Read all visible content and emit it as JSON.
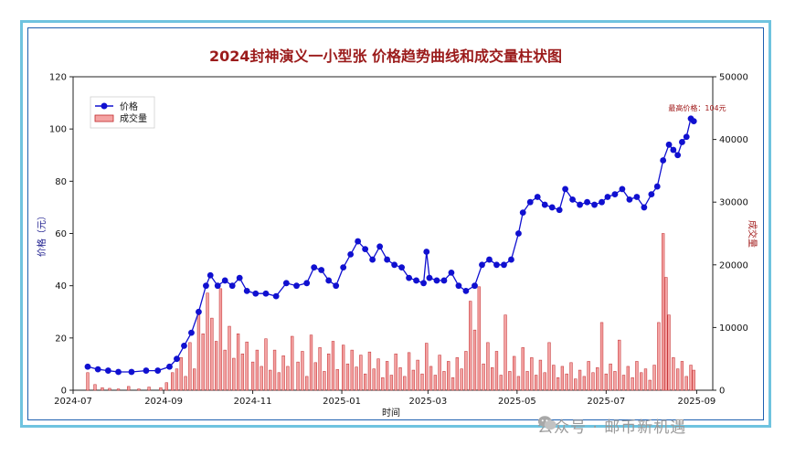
{
  "chart_data": {
    "type": "line+bar",
    "title": "2024封神演义一小型张 价格趋势曲线和成交量柱状图",
    "xlabel": "时间",
    "ylabel_left": "价格（元）",
    "ylabel_right": "成交量",
    "x_ticks": [
      "2024-07",
      "2024-09",
      "2024-11",
      "2025-01",
      "2025-03",
      "2025-05",
      "2025-07",
      "2025-09"
    ],
    "x_range": [
      "2024-07-01",
      "2025-09-12"
    ],
    "y_left_ticks": [
      0,
      20,
      40,
      60,
      80,
      100,
      120
    ],
    "y_left_range": [
      0,
      120
    ],
    "y_right_ticks": [
      0,
      10000,
      20000,
      30000,
      40000,
      50000
    ],
    "y_right_range": [
      0,
      50000
    ],
    "legend": {
      "position": "top-left",
      "items": [
        "价格",
        "成交量"
      ]
    },
    "annotation": "最高价格：104元",
    "colors": {
      "price": "#1010d0",
      "volume_fill": "#f4a3a3",
      "volume_edge": "#c0282a",
      "title": "#9b1b1b"
    },
    "series": [
      {
        "name": "价格",
        "kind": "line",
        "points": [
          [
            "2024-07-11",
            9
          ],
          [
            "2024-07-18",
            8
          ],
          [
            "2024-07-25",
            7.5
          ],
          [
            "2024-08-01",
            7
          ],
          [
            "2024-08-10",
            7
          ],
          [
            "2024-08-20",
            7.5
          ],
          [
            "2024-08-28",
            7.5
          ],
          [
            "2024-09-05",
            9
          ],
          [
            "2024-09-10",
            12
          ],
          [
            "2024-09-15",
            17
          ],
          [
            "2024-09-20",
            22
          ],
          [
            "2024-09-25",
            30
          ],
          [
            "2024-09-30",
            40
          ],
          [
            "2024-10-03",
            44
          ],
          [
            "2024-10-08",
            40
          ],
          [
            "2024-10-13",
            42
          ],
          [
            "2024-10-18",
            40
          ],
          [
            "2024-10-23",
            43
          ],
          [
            "2024-10-28",
            38
          ],
          [
            "2024-11-03",
            37
          ],
          [
            "2024-11-10",
            37
          ],
          [
            "2024-11-17",
            36
          ],
          [
            "2024-11-24",
            41
          ],
          [
            "2024-12-01",
            40
          ],
          [
            "2024-12-08",
            41
          ],
          [
            "2024-12-13",
            47
          ],
          [
            "2024-12-18",
            46
          ],
          [
            "2024-12-23",
            42
          ],
          [
            "2024-12-28",
            40
          ],
          [
            "2025-01-02",
            47
          ],
          [
            "2025-01-07",
            52
          ],
          [
            "2025-01-12",
            57
          ],
          [
            "2025-01-17",
            54
          ],
          [
            "2025-01-22",
            50
          ],
          [
            "2025-01-27",
            55
          ],
          [
            "2025-02-01",
            50
          ],
          [
            "2025-02-06",
            48
          ],
          [
            "2025-02-11",
            47
          ],
          [
            "2025-02-16",
            43
          ],
          [
            "2025-02-21",
            42
          ],
          [
            "2025-02-26",
            41
          ],
          [
            "2025-02-28",
            53
          ],
          [
            "2025-03-02",
            43
          ],
          [
            "2025-03-07",
            42
          ],
          [
            "2025-03-12",
            42
          ],
          [
            "2025-03-17",
            45
          ],
          [
            "2025-03-22",
            40
          ],
          [
            "2025-03-27",
            38
          ],
          [
            "2025-04-02",
            40
          ],
          [
            "2025-04-07",
            48
          ],
          [
            "2025-04-12",
            50
          ],
          [
            "2025-04-17",
            48
          ],
          [
            "2025-04-22",
            48
          ],
          [
            "2025-04-27",
            50
          ],
          [
            "2025-05-02",
            60
          ],
          [
            "2025-05-05",
            68
          ],
          [
            "2025-05-10",
            72
          ],
          [
            "2025-05-15",
            74
          ],
          [
            "2025-05-20",
            71
          ],
          [
            "2025-05-25",
            70
          ],
          [
            "2025-05-30",
            69
          ],
          [
            "2025-06-03",
            77
          ],
          [
            "2025-06-08",
            73
          ],
          [
            "2025-06-13",
            71
          ],
          [
            "2025-06-18",
            72
          ],
          [
            "2025-06-23",
            71
          ],
          [
            "2025-06-28",
            72
          ],
          [
            "2025-07-02",
            74
          ],
          [
            "2025-07-07",
            75
          ],
          [
            "2025-07-12",
            77
          ],
          [
            "2025-07-17",
            73
          ],
          [
            "2025-07-22",
            74
          ],
          [
            "2025-07-27",
            70
          ],
          [
            "2025-08-01",
            75
          ],
          [
            "2025-08-05",
            78
          ],
          [
            "2025-08-09",
            88
          ],
          [
            "2025-08-13",
            94
          ],
          [
            "2025-08-16",
            92
          ],
          [
            "2025-08-19",
            90
          ],
          [
            "2025-08-22",
            95
          ],
          [
            "2025-08-25",
            97
          ],
          [
            "2025-08-28",
            104
          ],
          [
            "2025-08-30",
            103
          ]
        ]
      },
      {
        "name": "成交量",
        "kind": "bar",
        "points": [
          [
            "2024-07-11",
            2800
          ],
          [
            "2024-07-16",
            900
          ],
          [
            "2024-07-21",
            400
          ],
          [
            "2024-07-26",
            300
          ],
          [
            "2024-08-01",
            200
          ],
          [
            "2024-08-08",
            600
          ],
          [
            "2024-08-15",
            200
          ],
          [
            "2024-08-22",
            500
          ],
          [
            "2024-08-30",
            400
          ],
          [
            "2024-09-03",
            1200
          ],
          [
            "2024-09-07",
            2800
          ],
          [
            "2024-09-10",
            3400
          ],
          [
            "2024-09-13",
            5200
          ],
          [
            "2024-09-16",
            2200
          ],
          [
            "2024-09-19",
            7600
          ],
          [
            "2024-09-22",
            3400
          ],
          [
            "2024-09-25",
            12000
          ],
          [
            "2024-09-28",
            9000
          ],
          [
            "2024-10-01",
            15500
          ],
          [
            "2024-10-04",
            11500
          ],
          [
            "2024-10-07",
            7800
          ],
          [
            "2024-10-10",
            16200
          ],
          [
            "2024-10-13",
            6400
          ],
          [
            "2024-10-16",
            10200
          ],
          [
            "2024-10-19",
            5100
          ],
          [
            "2024-10-22",
            9000
          ],
          [
            "2024-10-25",
            5800
          ],
          [
            "2024-10-28",
            7700
          ],
          [
            "2024-11-01",
            4500
          ],
          [
            "2024-11-04",
            6400
          ],
          [
            "2024-11-07",
            3800
          ],
          [
            "2024-11-10",
            8200
          ],
          [
            "2024-11-13",
            3200
          ],
          [
            "2024-11-16",
            6400
          ],
          [
            "2024-11-19",
            2800
          ],
          [
            "2024-11-22",
            5500
          ],
          [
            "2024-11-25",
            3800
          ],
          [
            "2024-11-28",
            8600
          ],
          [
            "2024-12-02",
            4500
          ],
          [
            "2024-12-05",
            6200
          ],
          [
            "2024-12-08",
            2200
          ],
          [
            "2024-12-11",
            8800
          ],
          [
            "2024-12-14",
            4400
          ],
          [
            "2024-12-17",
            6800
          ],
          [
            "2024-12-20",
            3000
          ],
          [
            "2024-12-23",
            5800
          ],
          [
            "2024-12-26",
            7800
          ],
          [
            "2024-12-29",
            3300
          ],
          [
            "2025-01-02",
            7200
          ],
          [
            "2025-01-05",
            4200
          ],
          [
            "2025-01-08",
            6400
          ],
          [
            "2025-01-11",
            3700
          ],
          [
            "2025-01-14",
            5600
          ],
          [
            "2025-01-17",
            2600
          ],
          [
            "2025-01-20",
            6100
          ],
          [
            "2025-01-23",
            3400
          ],
          [
            "2025-01-26",
            5000
          ],
          [
            "2025-01-29",
            2000
          ],
          [
            "2025-02-01",
            4600
          ],
          [
            "2025-02-04",
            2400
          ],
          [
            "2025-02-07",
            5800
          ],
          [
            "2025-02-10",
            3600
          ],
          [
            "2025-02-13",
            2200
          ],
          [
            "2025-02-16",
            6000
          ],
          [
            "2025-02-19",
            3200
          ],
          [
            "2025-02-22",
            4800
          ],
          [
            "2025-02-25",
            2600
          ],
          [
            "2025-02-28",
            7500
          ],
          [
            "2025-03-03",
            3800
          ],
          [
            "2025-03-06",
            2400
          ],
          [
            "2025-03-09",
            5600
          ],
          [
            "2025-03-12",
            3000
          ],
          [
            "2025-03-15",
            4600
          ],
          [
            "2025-03-18",
            2000
          ],
          [
            "2025-03-21",
            5200
          ],
          [
            "2025-03-24",
            3400
          ],
          [
            "2025-03-27",
            6200
          ],
          [
            "2025-03-30",
            14200
          ],
          [
            "2025-04-02",
            9600
          ],
          [
            "2025-04-05",
            16500
          ],
          [
            "2025-04-08",
            4200
          ],
          [
            "2025-04-11",
            7600
          ],
          [
            "2025-04-14",
            3600
          ],
          [
            "2025-04-17",
            6200
          ],
          [
            "2025-04-20",
            2400
          ],
          [
            "2025-04-23",
            12000
          ],
          [
            "2025-04-26",
            3000
          ],
          [
            "2025-04-29",
            5400
          ],
          [
            "2025-05-02",
            2200
          ],
          [
            "2025-05-05",
            6800
          ],
          [
            "2025-05-08",
            3000
          ],
          [
            "2025-05-11",
            5200
          ],
          [
            "2025-05-14",
            2400
          ],
          [
            "2025-05-17",
            4800
          ],
          [
            "2025-05-20",
            2800
          ],
          [
            "2025-05-23",
            7600
          ],
          [
            "2025-05-26",
            4000
          ],
          [
            "2025-05-29",
            2000
          ],
          [
            "2025-06-01",
            3800
          ],
          [
            "2025-06-04",
            2600
          ],
          [
            "2025-06-07",
            4400
          ],
          [
            "2025-06-10",
            1800
          ],
          [
            "2025-06-13",
            3200
          ],
          [
            "2025-06-16",
            2200
          ],
          [
            "2025-06-19",
            4600
          ],
          [
            "2025-06-22",
            2800
          ],
          [
            "2025-06-25",
            3600
          ],
          [
            "2025-06-28",
            10800
          ],
          [
            "2025-07-01",
            2600
          ],
          [
            "2025-07-04",
            4200
          ],
          [
            "2025-07-07",
            3000
          ],
          [
            "2025-07-10",
            8000
          ],
          [
            "2025-07-13",
            2400
          ],
          [
            "2025-07-16",
            3800
          ],
          [
            "2025-07-19",
            2000
          ],
          [
            "2025-07-22",
            4600
          ],
          [
            "2025-07-25",
            2800
          ],
          [
            "2025-07-28",
            3400
          ],
          [
            "2025-07-31",
            1600
          ],
          [
            "2025-08-03",
            4000
          ],
          [
            "2025-08-06",
            10800
          ],
          [
            "2025-08-09",
            25000
          ],
          [
            "2025-08-11",
            18000
          ],
          [
            "2025-08-13",
            12000
          ],
          [
            "2025-08-16",
            5200
          ],
          [
            "2025-08-19",
            3400
          ],
          [
            "2025-08-22",
            4600
          ],
          [
            "2025-08-25",
            2200
          ],
          [
            "2025-08-28",
            4000
          ],
          [
            "2025-08-30",
            3200
          ]
        ]
      }
    ]
  },
  "watermark": {
    "text": "公众号 · 邮币新机遇",
    "icon": "wechat-icon"
  }
}
